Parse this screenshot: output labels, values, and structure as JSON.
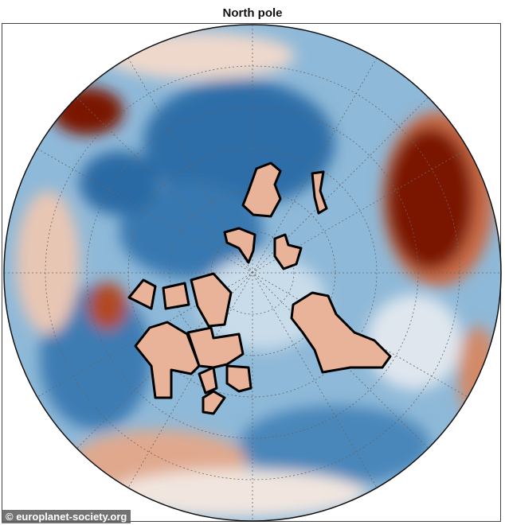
{
  "title": "North pole",
  "watermark": "© europlanet-society.org",
  "colors": {
    "low": "#1f5f9e",
    "mid": "#f4f1ee",
    "high": "#c1552b",
    "max": "#6b0a00",
    "outline": "#000000"
  }
}
